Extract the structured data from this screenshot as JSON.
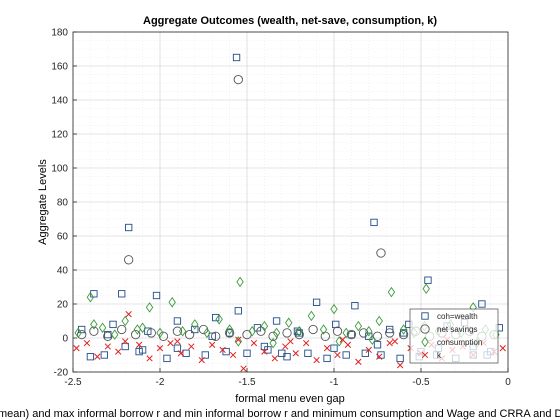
{
  "chart_data": {
    "type": "scatter",
    "title": "Aggregate Outcomes (wealth, net-save, consumption, k)",
    "xlabel": "formal menu even gap",
    "ylabel": "Aggregate Levels",
    "subtitle": "mean) and max informal borrow r and min informal borrow r and minimum consumption and Wage and CRRA and D",
    "xlim": [
      -2.5,
      0
    ],
    "ylim": [
      -20,
      180
    ],
    "xticks": [
      "-2.5",
      "-2",
      "-1.5",
      "-1",
      "-0.5",
      "0"
    ],
    "yticks": [
      "-20",
      "0",
      "20",
      "40",
      "60",
      "80",
      "100",
      "120",
      "140",
      "160",
      "180"
    ],
    "grid": true,
    "legend_position": "bottom-right",
    "series": [
      {
        "name": "coh=wealth",
        "marker": "square",
        "color": "#1f4e8c",
        "x": [
          -2.45,
          -2.38,
          -2.32,
          -2.27,
          -2.22,
          -2.18,
          -2.12,
          -2.07,
          -2.02,
          -1.96,
          -1.9,
          -1.85,
          -1.8,
          -1.74,
          -1.68,
          -1.62,
          -1.56,
          -1.55,
          -1.5,
          -1.44,
          -1.38,
          -1.33,
          -1.27,
          -1.21,
          -1.15,
          -1.1,
          -1.04,
          -0.99,
          -0.93,
          -0.88,
          -0.82,
          -0.77,
          -0.73,
          -0.68,
          -0.62,
          -0.57,
          -0.51,
          -0.46,
          -0.41,
          -0.35,
          -0.3,
          -0.25,
          -0.2,
          -0.15,
          -0.1,
          -0.05,
          -2.2,
          -2.4,
          -1.9,
          -1.4,
          -1.0,
          -0.75,
          -0.5,
          -2.3,
          -1.7,
          -1.2,
          -0.9,
          -0.6,
          -0.2,
          -2.1,
          -1.6,
          -1.3,
          -0.8,
          -0.4,
          -0.12
        ],
        "y": [
          5,
          26,
          -10,
          8,
          26,
          65,
          -8,
          4,
          25,
          -12,
          10,
          -9,
          5,
          -10,
          12,
          -8,
          165,
          16,
          -9,
          6,
          -7,
          10,
          -11,
          4,
          -9,
          21,
          -12,
          8,
          -10,
          19,
          -9,
          68,
          -10,
          5,
          -12,
          8,
          -11,
          34,
          -10,
          7,
          -12,
          9,
          -10,
          20,
          -8,
          6,
          -5,
          -11,
          -6,
          -5,
          -6,
          -4,
          -8,
          2,
          1,
          3,
          2,
          3,
          -5,
          -7,
          3,
          -9,
          1,
          -6,
          -10
        ]
      },
      {
        "name": "net savings",
        "marker": "circle",
        "color": "#555555",
        "x": [
          -2.45,
          -2.38,
          -2.3,
          -2.22,
          -2.18,
          -2.14,
          -2.05,
          -1.98,
          -1.9,
          -1.83,
          -1.75,
          -1.68,
          -1.6,
          -1.55,
          -1.5,
          -1.42,
          -1.35,
          -1.27,
          -1.2,
          -1.12,
          -1.05,
          -0.98,
          -0.9,
          -0.83,
          -0.75,
          -0.73,
          -0.68,
          -0.6,
          -0.53,
          -0.45,
          -0.38,
          -0.3,
          -0.22,
          -0.15,
          -0.08
        ],
        "y": [
          2,
          4,
          1,
          5,
          46,
          2,
          3,
          1,
          4,
          2,
          5,
          1,
          3,
          152,
          2,
          4,
          1,
          3,
          2,
          5,
          1,
          4,
          2,
          3,
          1,
          50,
          3,
          2,
          4,
          1,
          3,
          2,
          4,
          1,
          2
        ]
      },
      {
        "name": "consumption",
        "marker": "diamond",
        "color": "#3a9a3a",
        "x": [
          -2.47,
          -2.4,
          -2.33,
          -2.26,
          -2.2,
          -2.13,
          -2.06,
          -2.0,
          -1.93,
          -1.87,
          -1.8,
          -1.73,
          -1.66,
          -1.6,
          -1.54,
          -1.47,
          -1.4,
          -1.33,
          -1.26,
          -1.2,
          -1.13,
          -1.06,
          -1.0,
          -0.93,
          -0.86,
          -0.8,
          -0.74,
          -0.67,
          -0.6,
          -0.54,
          -0.47,
          -0.4,
          -0.33,
          -0.27,
          -0.2,
          -0.13,
          -0.07,
          -2.38,
          -2.1,
          -1.55,
          -1.35,
          -0.97,
          -0.78,
          -0.48,
          -0.18
        ],
        "y": [
          3,
          24,
          6,
          2,
          10,
          5,
          18,
          3,
          21,
          4,
          8,
          3,
          11,
          5,
          33,
          4,
          7,
          3,
          9,
          4,
          13,
          5,
          17,
          3,
          7,
          4,
          10,
          27,
          5,
          3,
          29,
          4,
          8,
          3,
          18,
          5,
          2,
          8,
          6,
          -2,
          -3,
          -2,
          -1,
          7,
          -3
        ]
      },
      {
        "name": "k",
        "marker": "x",
        "color": "#e02020",
        "x": [
          -2.48,
          -2.42,
          -2.36,
          -2.3,
          -2.24,
          -2.18,
          -2.12,
          -2.06,
          -2.0,
          -1.94,
          -1.88,
          -1.82,
          -1.76,
          -1.7,
          -1.64,
          -1.58,
          -1.52,
          -1.46,
          -1.4,
          -1.34,
          -1.28,
          -1.22,
          -1.16,
          -1.1,
          -1.04,
          -0.98,
          -0.92,
          -0.86,
          -0.8,
          -0.74,
          -0.68,
          -0.62,
          -0.56,
          -0.5,
          -0.44,
          -0.38,
          -0.32,
          -0.26,
          -0.2,
          -0.14,
          -0.08,
          -0.03,
          -2.2,
          -1.9,
          -1.55,
          -1.25,
          -0.95,
          -0.65,
          -0.35
        ],
        "y": [
          -6,
          -3,
          -11,
          -5,
          -8,
          14,
          -4,
          -12,
          -6,
          -3,
          -9,
          -5,
          -13,
          -4,
          -7,
          -10,
          -18,
          -3,
          -8,
          -12,
          -5,
          -9,
          -3,
          -13,
          -6,
          -10,
          -4,
          -14,
          -7,
          -11,
          -3,
          -16,
          -6,
          -9,
          -4,
          -12,
          -7,
          -5,
          -10,
          -3,
          -8,
          -6,
          -2,
          -2,
          -1,
          -2,
          -1,
          -2,
          -1
        ]
      }
    ],
    "legend": [
      "coh=wealth",
      "net savings",
      "consumption",
      "k"
    ]
  }
}
